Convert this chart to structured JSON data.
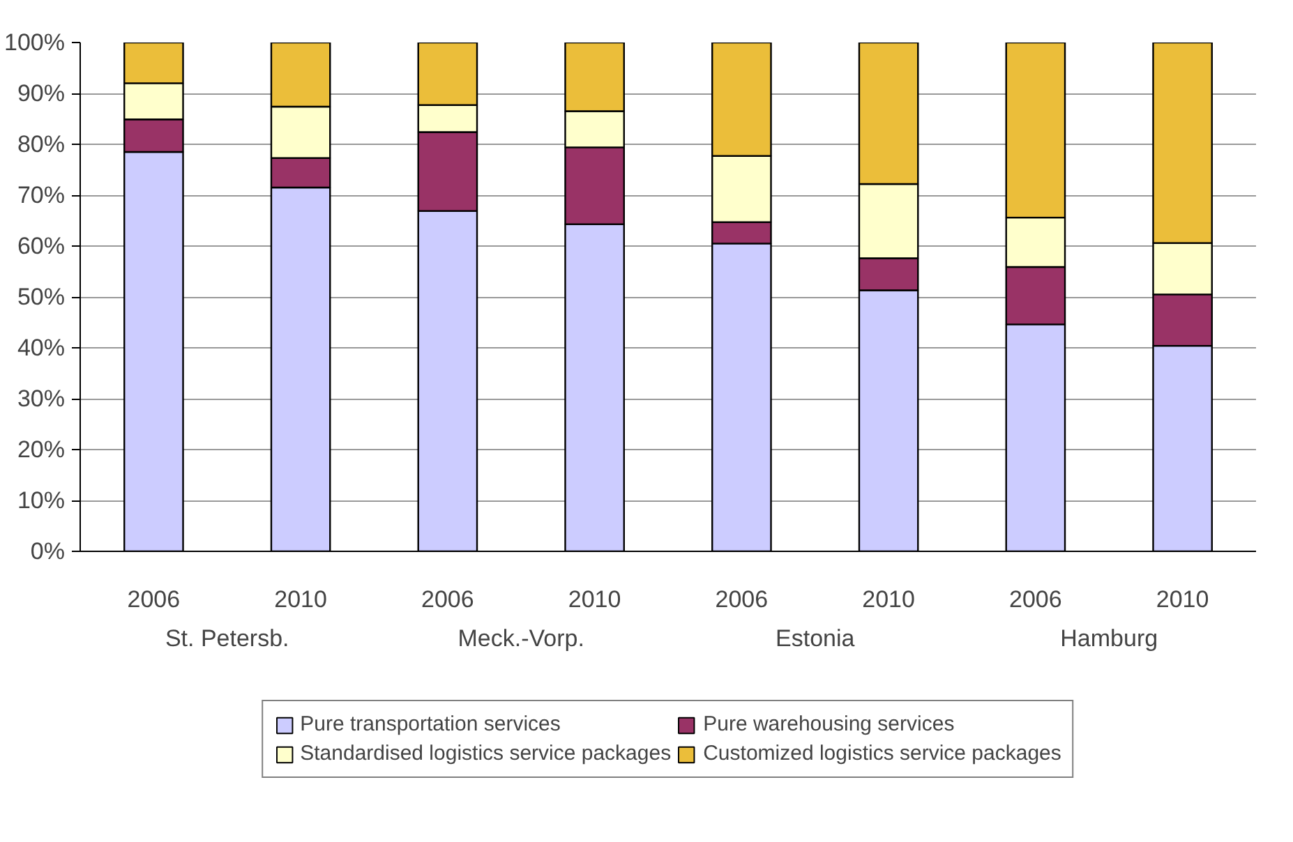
{
  "chart_data": {
    "type": "bar",
    "stacked": true,
    "categories": [
      "2006",
      "2010",
      "2006",
      "2010",
      "2006",
      "2010",
      "2006",
      "2010"
    ],
    "annotations": [
      "St. Petersb.",
      "Meck.-Vorp.",
      "Estonia",
      "Hamburg"
    ],
    "series": [
      {
        "name": "Pure transportation services",
        "color": "#ccccff",
        "values": [
          78.5,
          71.5,
          66.9,
          64.3,
          60.5,
          51.3,
          44.6,
          40.4
        ]
      },
      {
        "name": "Pure warehousing services",
        "color": "#993366",
        "values": [
          6.4,
          5.8,
          15.5,
          15.1,
          4.2,
          6.3,
          11.3,
          10.1
        ]
      },
      {
        "name": "Standardised logistics service packages",
        "color": "#ffffcc",
        "values": [
          7.1,
          10.1,
          5.3,
          7.1,
          13.0,
          14.6,
          9.7,
          10.1
        ]
      },
      {
        "name": "Customized logistics service packages",
        "color": "#ebbe3a",
        "values": [
          8.0,
          12.6,
          12.3,
          13.5,
          22.3,
          27.8,
          34.4,
          39.4
        ]
      }
    ],
    "ylim": [
      0,
      100
    ],
    "yticks": [
      {
        "value": 0,
        "label": "0%"
      },
      {
        "value": 10,
        "label": "10%"
      },
      {
        "value": 20,
        "label": "20%"
      },
      {
        "value": 30,
        "label": "30%"
      },
      {
        "value": 40,
        "label": "40%"
      },
      {
        "value": 50,
        "label": "50%"
      },
      {
        "value": 60,
        "label": "60%"
      },
      {
        "value": 70,
        "label": "70%"
      },
      {
        "value": 80,
        "label": "80%"
      },
      {
        "value": 90,
        "label": "90%"
      },
      {
        "value": 100,
        "label": "100%"
      }
    ],
    "grid": "y",
    "legend": "bottom"
  }
}
